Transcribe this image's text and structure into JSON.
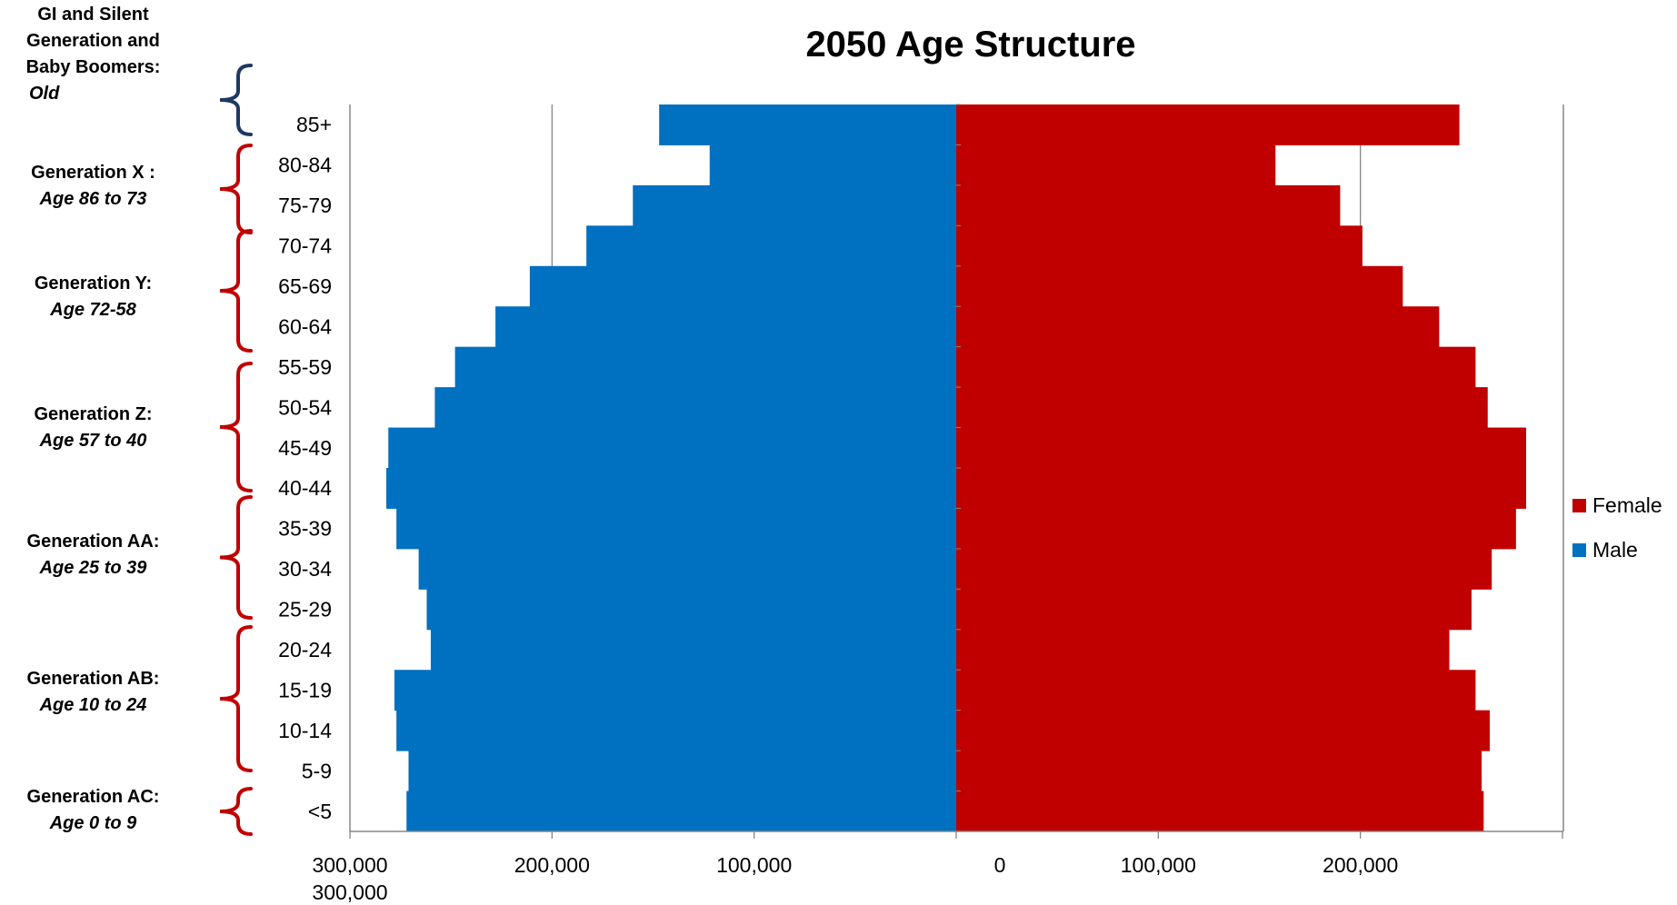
{
  "colors": {
    "female": "#C00000",
    "male": "#0070C0",
    "bracket_old": "#1F3864",
    "bracket_gen": "#C00000",
    "axis": "#868686"
  },
  "chart_data": {
    "type": "bar",
    "title": "2050 Age Structure",
    "categories": [
      "85+",
      "80-84",
      "75-79",
      "70-74",
      "65-69",
      "60-64",
      "55-59",
      "50-54",
      "45-49",
      "40-44",
      "35-39",
      "30-34",
      "25-29",
      "20-24",
      "15-19",
      "10-14",
      "5-9",
      "<5"
    ],
    "series": [
      {
        "name": "Female",
        "color": "#C00000",
        "values": [
          249000,
          158000,
          190000,
          201000,
          221000,
          239000,
          257000,
          263000,
          282000,
          282000,
          277000,
          265000,
          255000,
          244000,
          257000,
          264000,
          260000,
          261000
        ]
      },
      {
        "name": "Male",
        "color": "#0070C0",
        "values": [
          147000,
          122000,
          160000,
          183000,
          211000,
          228000,
          248000,
          258000,
          281000,
          282000,
          277000,
          266000,
          262000,
          260000,
          278000,
          277000,
          271000,
          272000
        ]
      }
    ],
    "x_tick_labels": [
      "300,000",
      "200,000",
      "100,000",
      "0",
      "100,000",
      "200,000"
    ],
    "x_tick_extra": "300,000",
    "xlim": [
      -300000,
      300000
    ],
    "gridlines": [
      -200000,
      200000
    ],
    "legend": [
      "Female",
      "Male"
    ],
    "legend_position": "right",
    "xlabel": "",
    "ylabel": ""
  },
  "generations": [
    {
      "label_lines": [
        "GI and Silent",
        "Generation and",
        "Baby Boomers:"
      ],
      "age": "Old",
      "color": "#1F3864"
    },
    {
      "label_lines": [
        "Generation X :"
      ],
      "age": "Age 86 to 73",
      "color": "#C00000"
    },
    {
      "label_lines": [
        "Generation Y:"
      ],
      "age": "Age 72-58",
      "color": "#C00000"
    },
    {
      "label_lines": [
        "Generation Z:"
      ],
      "age": "Age 57 to 40",
      "color": "#C00000"
    },
    {
      "label_lines": [
        "Generation AA:"
      ],
      "age": "Age 25 to 39",
      "color": "#C00000"
    },
    {
      "label_lines": [
        "Generation AB:"
      ],
      "age": "Age 10 to 24",
      "color": "#C00000"
    },
    {
      "label_lines": [
        "Generation AC:"
      ],
      "age": "Age 0 to 9",
      "color": "#C00000"
    }
  ]
}
